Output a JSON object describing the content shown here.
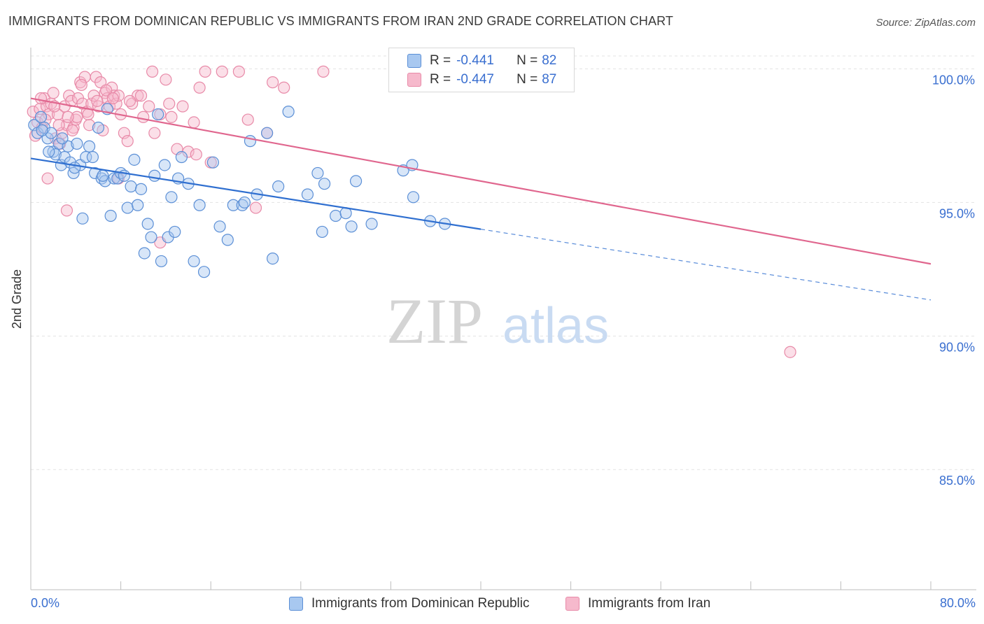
{
  "title": "IMMIGRANTS FROM DOMINICAN REPUBLIC VS IMMIGRANTS FROM IRAN 2ND GRADE CORRELATION CHART",
  "source": "Source: ZipAtlas.com",
  "watermark": {
    "zip": "ZIP",
    "atlas": "atlas"
  },
  "legend": {
    "rows": [
      {
        "r_label": "R =",
        "r_value": "-0.441",
        "n_label": "N =",
        "n_value": "82"
      },
      {
        "r_label": "R =",
        "r_value": "-0.447",
        "n_label": "N =",
        "n_value": "87"
      }
    ]
  },
  "colors": {
    "blue_fill": "#a8c8f0",
    "blue_stroke": "#5b8fd6",
    "blue_line": "#2f6fd0",
    "pink_fill": "#f6b9cc",
    "pink_stroke": "#e88aa8",
    "pink_line": "#e0668e",
    "tick_text": "#3a6fd0",
    "grid": "#e3e3e3"
  },
  "chart_data": {
    "type": "scatter",
    "title": "IMMIGRANTS FROM DOMINICAN REPUBLIC VS IMMIGRANTS FROM IRAN 2ND GRADE CORRELATION CHART",
    "xlabel": "",
    "ylabel": "2nd Grade",
    "xlim": [
      0,
      80
    ],
    "ylim": [
      80.5,
      100.8
    ],
    "x_tick_labels": [
      "0.0%",
      "80.0%"
    ],
    "y_ticks": [
      85,
      90,
      95,
      100
    ],
    "y_tick_labels": [
      "85.0%",
      "90.0%",
      "95.0%",
      "100.0%"
    ],
    "grid": true,
    "legend_position": "bottom",
    "series": [
      {
        "name": "Immigrants from Dominican Republic",
        "color": "#5b8fd6",
        "trend": {
          "x0": 0,
          "y0": 96.65,
          "x1": 40,
          "y1": 94.0,
          "dashed_to_x": 80,
          "dashed_to_y": 91.35
        },
        "points": [
          [
            0.3,
            97.9
          ],
          [
            0.6,
            97.6
          ],
          [
            0.9,
            98.2
          ],
          [
            1.2,
            97.8
          ],
          [
            1.5,
            97.4
          ],
          [
            1.8,
            97.6
          ],
          [
            2.0,
            96.9
          ],
          [
            2.2,
            96.8
          ],
          [
            2.5,
            97.2
          ],
          [
            2.7,
            96.4
          ],
          [
            3.0,
            96.7
          ],
          [
            3.3,
            97.1
          ],
          [
            3.5,
            96.5
          ],
          [
            3.8,
            96.1
          ],
          [
            4.1,
            97.2
          ],
          [
            4.4,
            96.4
          ],
          [
            4.6,
            94.4
          ],
          [
            4.9,
            96.7
          ],
          [
            5.2,
            97.1
          ],
          [
            5.5,
            96.7
          ],
          [
            5.7,
            96.1
          ],
          [
            6.0,
            97.8
          ],
          [
            6.3,
            95.9
          ],
          [
            6.6,
            95.8
          ],
          [
            6.8,
            98.5
          ],
          [
            7.1,
            94.5
          ],
          [
            7.4,
            95.9
          ],
          [
            7.7,
            95.9
          ],
          [
            8.0,
            96.1
          ],
          [
            8.3,
            96.0
          ],
          [
            8.6,
            94.8
          ],
          [
            8.9,
            95.6
          ],
          [
            9.2,
            96.6
          ],
          [
            9.5,
            94.9
          ],
          [
            9.8,
            95.5
          ],
          [
            10.1,
            93.1
          ],
          [
            10.4,
            94.2
          ],
          [
            10.7,
            93.7
          ],
          [
            11.0,
            96.0
          ],
          [
            11.3,
            98.3
          ],
          [
            11.6,
            92.8
          ],
          [
            11.9,
            96.4
          ],
          [
            12.2,
            93.7
          ],
          [
            12.5,
            95.2
          ],
          [
            12.8,
            93.9
          ],
          [
            13.1,
            95.9
          ],
          [
            13.4,
            96.7
          ],
          [
            14.0,
            95.7
          ],
          [
            14.5,
            92.8
          ],
          [
            15.0,
            94.9
          ],
          [
            15.4,
            92.4
          ],
          [
            16.2,
            96.5
          ],
          [
            16.8,
            94.1
          ],
          [
            17.5,
            93.6
          ],
          [
            18.0,
            94.9
          ],
          [
            18.8,
            94.9
          ],
          [
            19.0,
            95.0
          ],
          [
            19.5,
            97.3
          ],
          [
            20.1,
            95.3
          ],
          [
            21.0,
            97.6
          ],
          [
            21.5,
            92.9
          ],
          [
            22.0,
            95.6
          ],
          [
            22.9,
            98.4
          ],
          [
            24.6,
            95.3
          ],
          [
            25.5,
            96.1
          ],
          [
            25.9,
            93.9
          ],
          [
            26.1,
            95.7
          ],
          [
            27.1,
            94.5
          ],
          [
            28.0,
            94.6
          ],
          [
            28.5,
            94.1
          ],
          [
            28.9,
            95.8
          ],
          [
            30.3,
            94.2
          ],
          [
            33.1,
            96.2
          ],
          [
            33.9,
            96.4
          ],
          [
            34.0,
            95.2
          ],
          [
            35.5,
            94.3
          ],
          [
            36.8,
            94.2
          ],
          [
            1.0,
            97.7
          ],
          [
            2.8,
            97.4
          ],
          [
            3.9,
            96.3
          ],
          [
            1.6,
            96.9
          ],
          [
            6.4,
            96.0
          ]
        ]
      },
      {
        "name": "Immigrants from Iran",
        "color": "#e88aa8",
        "trend": {
          "x0": 0,
          "y0": 98.9,
          "x1": 80,
          "y1": 92.7
        },
        "points": [
          [
            0.2,
            98.4
          ],
          [
            0.4,
            97.5
          ],
          [
            0.6,
            98.0
          ],
          [
            0.8,
            98.5
          ],
          [
            1.0,
            97.8
          ],
          [
            1.2,
            98.9
          ],
          [
            1.4,
            98.6
          ],
          [
            1.6,
            98.3
          ],
          [
            1.8,
            98.7
          ],
          [
            2.0,
            99.1
          ],
          [
            2.2,
            97.4
          ],
          [
            2.4,
            98.3
          ],
          [
            2.6,
            97.2
          ],
          [
            2.8,
            97.6
          ],
          [
            3.0,
            98.6
          ],
          [
            3.2,
            97.9
          ],
          [
            3.4,
            99.0
          ],
          [
            3.6,
            98.8
          ],
          [
            3.8,
            97.8
          ],
          [
            4.0,
            98.1
          ],
          [
            4.2,
            98.9
          ],
          [
            4.4,
            99.5
          ],
          [
            4.6,
            98.7
          ],
          [
            4.8,
            99.7
          ],
          [
            5.0,
            98.4
          ],
          [
            5.2,
            97.9
          ],
          [
            5.4,
            98.7
          ],
          [
            5.6,
            99.0
          ],
          [
            5.8,
            99.7
          ],
          [
            6.0,
            98.6
          ],
          [
            6.2,
            99.5
          ],
          [
            6.4,
            97.7
          ],
          [
            6.6,
            99.1
          ],
          [
            6.8,
            98.9
          ],
          [
            7.0,
            98.6
          ],
          [
            7.2,
            99.3
          ],
          [
            7.4,
            99.0
          ],
          [
            7.6,
            98.7
          ],
          [
            7.8,
            99.0
          ],
          [
            8.0,
            98.3
          ],
          [
            8.3,
            97.6
          ],
          [
            8.6,
            97.3
          ],
          [
            9.0,
            98.7
          ],
          [
            9.5,
            99.0
          ],
          [
            10.0,
            98.2
          ],
          [
            10.5,
            98.6
          ],
          [
            11.0,
            97.6
          ],
          [
            11.5,
            98.3
          ],
          [
            12.0,
            99.6
          ],
          [
            12.5,
            98.2
          ],
          [
            13.0,
            97.0
          ],
          [
            13.5,
            98.6
          ],
          [
            14.0,
            96.9
          ],
          [
            14.5,
            98.0
          ],
          [
            15.0,
            99.3
          ],
          [
            15.5,
            99.9
          ],
          [
            16.0,
            96.5
          ],
          [
            17.0,
            99.9
          ],
          [
            18.5,
            99.9
          ],
          [
            19.3,
            98.1
          ],
          [
            21.0,
            97.6
          ],
          [
            21.5,
            99.5
          ],
          [
            22.5,
            99.3
          ],
          [
            26.0,
            99.9
          ],
          [
            3.2,
            94.7
          ],
          [
            1.5,
            95.9
          ],
          [
            11.5,
            93.5
          ],
          [
            20.0,
            94.8
          ],
          [
            67.5,
            89.4
          ],
          [
            10.8,
            99.9
          ],
          [
            7.8,
            95.9
          ],
          [
            3.7,
            97.7
          ],
          [
            5.9,
            98.8
          ],
          [
            0.9,
            98.9
          ],
          [
            1.3,
            98.1
          ],
          [
            2.1,
            98.6
          ],
          [
            4.1,
            98.2
          ],
          [
            6.7,
            99.2
          ],
          [
            8.8,
            98.8
          ],
          [
            2.5,
            97.9
          ],
          [
            5.1,
            98.3
          ],
          [
            9.8,
            99.0
          ],
          [
            12.3,
            98.7
          ],
          [
            14.7,
            96.8
          ],
          [
            4.5,
            99.4
          ],
          [
            3.3,
            98.2
          ],
          [
            7.3,
            98.9
          ]
        ]
      }
    ]
  }
}
